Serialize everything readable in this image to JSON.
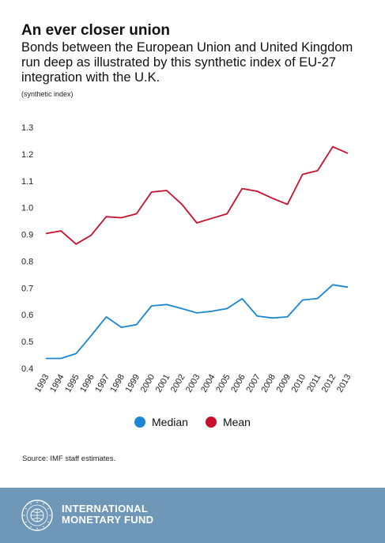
{
  "header": {
    "title": "An ever closer union",
    "subtitle": "Bonds between the European Union and United Kingdom run deep as illustrated by this synthetic index of EU-27 integration with the U.K.",
    "unit": "(synthetic index)"
  },
  "chart_data": {
    "type": "line",
    "x": [
      "1993",
      "1994",
      "1995",
      "1996",
      "1997",
      "1998",
      "1999",
      "2000",
      "2001",
      "2002",
      "2003",
      "2004",
      "2005",
      "2006",
      "2007",
      "2008",
      "2009",
      "2010",
      "2011",
      "2012",
      "2013"
    ],
    "yticks": [
      "1.3",
      "1.2",
      "1.1",
      "1.0",
      "0.9",
      "0.8",
      "0.7",
      "0.6",
      "0.5",
      "0.4"
    ],
    "ylim": [
      0.4,
      1.3
    ],
    "grid": false,
    "legend": "bottom",
    "series": [
      {
        "name": "Median",
        "color": "#1a86d4",
        "values": [
          0.437,
          0.437,
          0.455,
          0.522,
          0.592,
          0.553,
          0.563,
          0.633,
          0.638,
          0.623,
          0.607,
          0.613,
          0.623,
          0.66,
          0.595,
          0.588,
          0.592,
          0.655,
          0.661,
          0.712,
          0.703
        ]
      },
      {
        "name": "Mean",
        "color": "#c8102e",
        "values": [
          0.903,
          0.913,
          0.864,
          0.897,
          0.966,
          0.962,
          0.977,
          1.058,
          1.064,
          1.013,
          0.943,
          0.96,
          0.977,
          1.071,
          1.061,
          1.035,
          1.012,
          1.124,
          1.138,
          1.227,
          1.203
        ]
      }
    ]
  },
  "legend": {
    "items": [
      {
        "label": "Median",
        "color": "#1a86d4"
      },
      {
        "label": "Mean",
        "color": "#c8102e"
      }
    ]
  },
  "source": "Source: IMF staff estimates.",
  "footer": {
    "brand_line1": "INTERNATIONAL",
    "brand_line2": "MONETARY FUND",
    "background": "#6e97b8",
    "seal_icon": "imf-seal-icon"
  }
}
